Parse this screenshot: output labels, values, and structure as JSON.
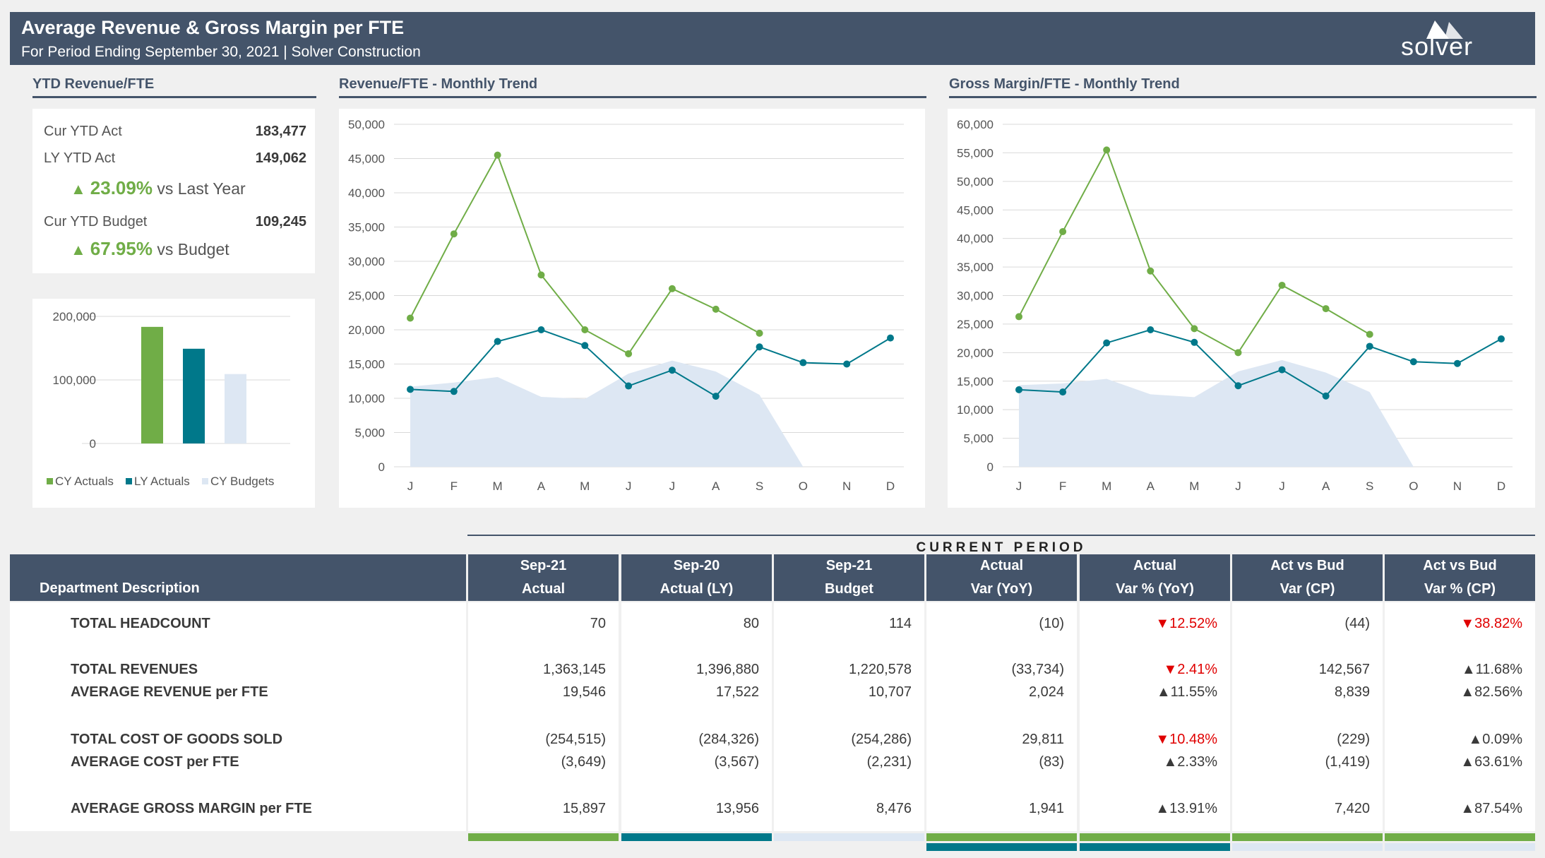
{
  "header": {
    "title": "Average Revenue & Gross Margin per FTE",
    "subtitle": "For Period Ending September 30, 2021 | Solver Construction",
    "logo_text": "solver"
  },
  "sections": {
    "ytd": "YTD Revenue/FTE",
    "rev_trend": "Revenue/FTE - Monthly Trend",
    "gm_trend": "Gross Margin/FTE - Monthly Trend"
  },
  "kpi": {
    "cur_ytd_act_label": "Cur YTD Act",
    "cur_ytd_act_value": "183,477",
    "ly_ytd_act_label": "LY YTD Act",
    "ly_ytd_act_value": "149,062",
    "vs_ly_pct": "23.09%",
    "vs_ly_text": "vs Last Year",
    "cur_ytd_bud_label": "Cur YTD Budget",
    "cur_ytd_bud_value": "109,245",
    "vs_bud_pct": "67.95%",
    "vs_bud_text": "vs Budget"
  },
  "colors": {
    "cy_actuals": "#70ad47",
    "ly_actuals": "#00788a",
    "cy_budgets": "#dde7f3",
    "header": "#44546a",
    "negative": "#e00000"
  },
  "chart_data": [
    {
      "type": "bar",
      "categories": [
        "CY Actuals",
        "LY Actuals",
        "CY Budgets"
      ],
      "values": [
        183477,
        149062,
        109245
      ],
      "ylim": [
        0,
        200000
      ],
      "yticks": [
        "200,000",
        "100,000",
        "0"
      ],
      "legend": [
        "CY Actuals",
        "LY Actuals",
        "CY Budgets"
      ],
      "legend_position": "bottom",
      "grid": true
    },
    {
      "type": "line",
      "title": "Revenue/FTE - Monthly Trend",
      "categories": [
        "J",
        "F",
        "M",
        "A",
        "M",
        "J",
        "J",
        "A",
        "S",
        "O",
        "N",
        "D"
      ],
      "series": [
        {
          "values": [
            21700,
            34000,
            45500,
            28000,
            20000,
            16500,
            26000,
            23000,
            19500,
            null,
            null,
            null
          ]
        },
        {
          "values": [
            11300,
            11000,
            18300,
            20000,
            17700,
            11800,
            14100,
            10300,
            17500,
            15200,
            15000,
            18800
          ]
        },
        {
          "type": "area",
          "values": [
            11700,
            12300,
            13100,
            10200,
            9900,
            13600,
            15500,
            13900,
            10500,
            0,
            null,
            null
          ]
        }
      ],
      "ylim": [
        0,
        50000
      ],
      "yticks": [
        "50,000",
        "45,000",
        "40,000",
        "35,000",
        "30,000",
        "25,000",
        "20,000",
        "15,000",
        "10,000",
        "5,000",
        "0"
      ],
      "grid": true
    },
    {
      "type": "line",
      "title": "Gross Margin/FTE - Monthly Trend",
      "categories": [
        "J",
        "F",
        "M",
        "A",
        "M",
        "J",
        "J",
        "A",
        "S",
        "O",
        "N",
        "D"
      ],
      "series": [
        {
          "values": [
            26300,
            41200,
            55500,
            34300,
            24200,
            20000,
            31800,
            27700,
            23200,
            null,
            null,
            null
          ]
        },
        {
          "values": [
            13500,
            13100,
            21700,
            24000,
            21800,
            14200,
            17000,
            12400,
            21100,
            18400,
            18100,
            22400
          ]
        },
        {
          "type": "area",
          "values": [
            14300,
            14600,
            15400,
            12700,
            12200,
            16700,
            18700,
            16500,
            13100,
            0,
            null,
            null
          ]
        }
      ],
      "ylim": [
        0,
        60000
      ],
      "yticks": [
        "60,000",
        "55,000",
        "50,000",
        "45,000",
        "40,000",
        "35,000",
        "30,000",
        "25,000",
        "20,000",
        "15,000",
        "10,000",
        "5,000",
        "0"
      ],
      "grid": true
    }
  ],
  "table": {
    "current_period": "CURRENT PERIOD",
    "dept_header": "Department Description",
    "columns": [
      {
        "h1": "Sep-21",
        "h2": "Actual"
      },
      {
        "h1": "Sep-20",
        "h2": "Actual (LY)"
      },
      {
        "h1": "Sep-21",
        "h2": "Budget"
      },
      {
        "h1": "Actual",
        "h2": "Var (YoY)"
      },
      {
        "h1": "Actual",
        "h2": "Var % (YoY)"
      },
      {
        "h1": "Act vs Bud",
        "h2": "Var (CP)"
      },
      {
        "h1": "Act vs Bud",
        "h2": "Var % (CP)"
      }
    ],
    "rows": [
      {
        "label": "TOTAL HEADCOUNT",
        "cells": [
          "70",
          "80",
          "114",
          "(10)",
          "12.52%",
          "(44)",
          "38.82%"
        ],
        "dirs": [
          "down",
          "down"
        ]
      },
      {
        "label": "TOTAL REVENUES",
        "cells": [
          "1,363,145",
          "1,396,880",
          "1,220,578",
          "(33,734)",
          "2.41%",
          "142,567",
          "11.68%"
        ],
        "dirs": [
          "down",
          "up"
        ]
      },
      {
        "label": "AVERAGE REVENUE per FTE",
        "cells": [
          "19,546",
          "17,522",
          "10,707",
          "2,024",
          "11.55%",
          "8,839",
          "82.56%"
        ],
        "dirs": [
          "up",
          "up"
        ]
      },
      {
        "label": "TOTAL COST OF GOODS SOLD",
        "cells": [
          "(254,515)",
          "(284,326)",
          "(254,286)",
          "29,811",
          "10.48%",
          "(229)",
          "0.09%"
        ],
        "dirs": [
          "down",
          "up"
        ]
      },
      {
        "label": "AVERAGE COST per FTE",
        "cells": [
          "(3,649)",
          "(3,567)",
          "(2,231)",
          "(83)",
          "2.33%",
          "(1,419)",
          "63.61%"
        ],
        "dirs": [
          "up",
          "up"
        ]
      },
      {
        "label": "AVERAGE GROSS MARGIN per FTE",
        "cells": [
          "15,897",
          "13,956",
          "8,476",
          "1,941",
          "13.91%",
          "7,420",
          "87.54%"
        ],
        "dirs": [
          "up",
          "up"
        ]
      }
    ]
  }
}
